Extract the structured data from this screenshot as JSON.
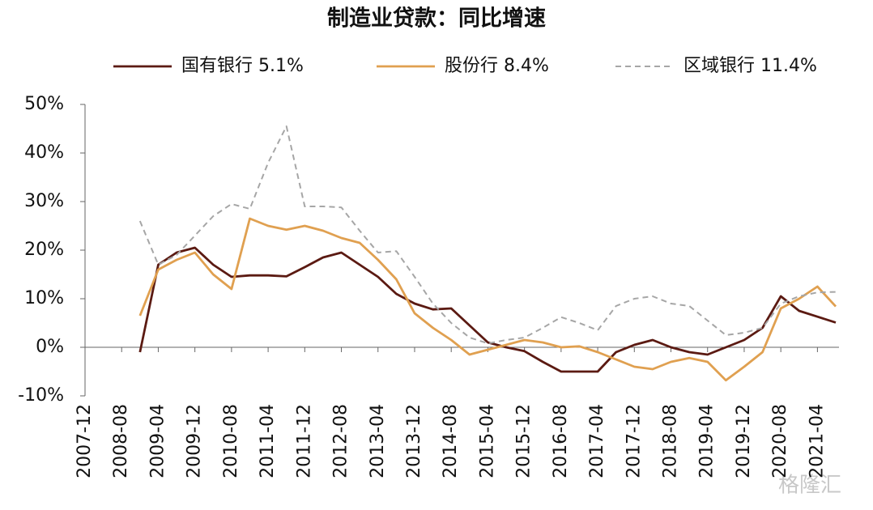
{
  "chart_data": {
    "type": "line",
    "title": "制造业贷款：同比增速",
    "categories": [
      "2007-12",
      null,
      "2008-08",
      null,
      "2009-04",
      null,
      "2009-12",
      null,
      "2010-08",
      null,
      "2011-04",
      null,
      "2011-12",
      null,
      "2012-08",
      null,
      "2013-04",
      null,
      "2013-12",
      null,
      "2014-08",
      null,
      "2015-04",
      null,
      "2015-12",
      null,
      "2016-08",
      null,
      "2017-04",
      null,
      "2017-12",
      null,
      "2018-08",
      null,
      "2019-04",
      null,
      "2019-12",
      null,
      "2020-08",
      null,
      "2021-04",
      null
    ],
    "series": [
      {
        "name": "国有银行  5.1%",
        "color": "#5b1a12",
        "dash": false,
        "values": [
          null,
          null,
          null,
          -1,
          17,
          19.5,
          20.5,
          17,
          14.5,
          14.8,
          14.8,
          14.6,
          16.5,
          18.5,
          19.5,
          17,
          14.5,
          11,
          9,
          7.8,
          8,
          4.5,
          1,
          0,
          -0.8,
          -3,
          -5,
          -5,
          -5,
          -1,
          0.5,
          1.5,
          0,
          -1,
          -1.5,
          0,
          1.5,
          4,
          10.5,
          7.5,
          6.3,
          5.1
        ]
      },
      {
        "name": "股份行   8.4%",
        "color": "#e0a050",
        "dash": false,
        "values": [
          null,
          null,
          null,
          6.5,
          16,
          18,
          19.5,
          15,
          12,
          26.5,
          25,
          24.2,
          25,
          24,
          22.5,
          21.5,
          18,
          14,
          7,
          4,
          1.5,
          -1.5,
          -0.5,
          0.5,
          1.5,
          1,
          0,
          0.2,
          -1,
          -2.5,
          -4,
          -4.5,
          -3,
          -2.2,
          -3,
          -6.8,
          -4,
          -1,
          8,
          10,
          12.5,
          8.4
        ]
      },
      {
        "name": "区域银行  11.4%",
        "color": "#a6a6a6",
        "dash": true,
        "values": [
          null,
          null,
          null,
          26,
          17,
          19,
          23,
          27,
          29.5,
          28.5,
          38,
          45.5,
          29,
          29,
          28.8,
          24,
          19.5,
          19.8,
          14.5,
          9,
          5,
          2,
          0.8,
          1.5,
          2,
          4,
          6.2,
          5,
          3.5,
          8.5,
          10,
          10.5,
          9,
          8.5,
          5.5,
          2.5,
          3,
          4,
          9,
          10.5,
          11.3,
          11.4
        ]
      }
    ],
    "ylim": [
      -10,
      50
    ],
    "yticks": [
      {
        "value": -10,
        "label": "-10%"
      },
      {
        "value": 0,
        "label": "0%"
      },
      {
        "value": 10,
        "label": "10%"
      },
      {
        "value": 20,
        "label": "20%"
      },
      {
        "value": 30,
        "label": "30%"
      },
      {
        "value": 40,
        "label": "40%"
      },
      {
        "value": 50,
        "label": "50%"
      }
    ],
    "grid": false,
    "legend": "top",
    "watermark": "格隆汇"
  }
}
